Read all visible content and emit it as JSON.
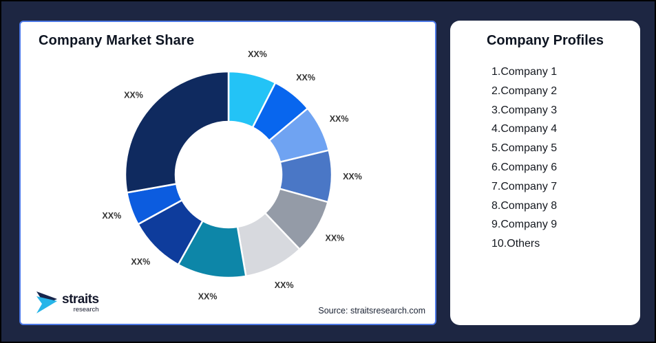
{
  "page": {
    "background_color": "#1D2642",
    "outer_border_color": "#000000"
  },
  "left_card": {
    "title": "Company Market Share",
    "border_color": "#4D79E6",
    "source": "Source: straitsresearch.com",
    "logo": {
      "name": "straits",
      "sub": "research",
      "mark_navy": "#16254C",
      "mark_cyan": "#27B5E9"
    }
  },
  "right_card": {
    "title": "Company Profiles",
    "items": [
      "1.Company 1",
      "2.Company 2",
      "3.Company 3",
      "4.Company 4",
      "5.Company 5",
      "6.Company 6",
      "7.Company 7",
      "8.Company 8",
      "9.Company 9",
      "10.Others"
    ]
  },
  "chart_data": {
    "type": "pie",
    "subtype": "donut",
    "title": "Company Market Share",
    "source": "Source: straitsresearch.com",
    "start_angle_deg": 0,
    "direction": "clockwise",
    "inner_radius_ratio": 0.51,
    "legend": "none",
    "note": "All slice data labels display placeholder text XX%; slice sizes estimated from drawn arc angles",
    "slices": [
      {
        "label": "XX%",
        "percent_of_ring": 7.5,
        "color": "#23C3F6"
      },
      {
        "label": "XX%",
        "percent_of_ring": 6.4,
        "color": "#0866EE"
      },
      {
        "label": "XX%",
        "percent_of_ring": 7.3,
        "color": "#6FA3F2"
      },
      {
        "label": "XX%",
        "percent_of_ring": 8.1,
        "color": "#4A77C6"
      },
      {
        "label": "XX%",
        "percent_of_ring": 8.6,
        "color": "#949BA7"
      },
      {
        "label": "XX%",
        "percent_of_ring": 9.4,
        "color": "#D7D9DE"
      },
      {
        "label": "XX%",
        "percent_of_ring": 10.8,
        "color": "#0D86A8"
      },
      {
        "label": "XX%",
        "percent_of_ring": 8.9,
        "color": "#0E3C9C"
      },
      {
        "label": "XX%",
        "percent_of_ring": 5.2,
        "color": "#0C5CDF"
      },
      {
        "label": "XX%",
        "percent_of_ring": 27.8,
        "color": "#0F2A5F"
      }
    ]
  }
}
